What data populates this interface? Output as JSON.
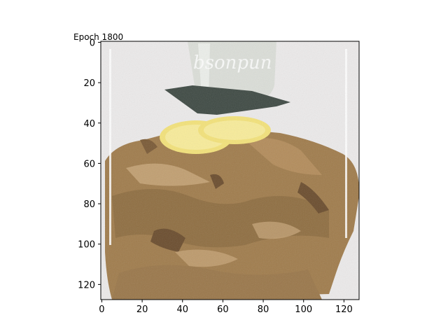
{
  "figure": {
    "title": "Epoch 1800"
  },
  "image_panel": {
    "x_ticks": [
      "0",
      "20",
      "40",
      "60",
      "80",
      "100",
      "120"
    ],
    "y_ticks": [
      "0",
      "20",
      "40",
      "60",
      "80",
      "100",
      "120"
    ],
    "pixel_extent": [
      128,
      128
    ],
    "watermark": "bsonpun",
    "colors": {
      "background": "#eceaea",
      "glass": "#d9ddd6",
      "coaster": "#3f4a44",
      "lemon": "#f3e27a",
      "chicken": "#a07c4c",
      "chicken_dark": "#6b4d2e",
      "chicken_light": "#c9a77a"
    }
  },
  "x_tick_values": [
    0,
    20,
    40,
    60,
    80,
    100,
    120
  ],
  "y_tick_values": [
    0,
    20,
    40,
    60,
    80,
    100,
    120
  ]
}
